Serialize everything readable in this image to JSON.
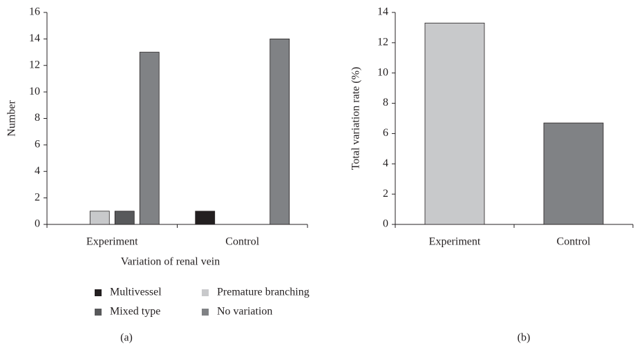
{
  "chart_data": [
    {
      "type": "bar",
      "caption": "(a)",
      "y_label": "Number",
      "x_label": "Variation of renal vein",
      "categories": [
        "Experiment",
        "Control"
      ],
      "series": [
        {
          "name": "Multivessel",
          "color": "#231f20",
          "values": [
            0,
            1
          ]
        },
        {
          "name": "Premature branching",
          "color": "#c8c9cb",
          "values": [
            1,
            0
          ]
        },
        {
          "name": "Mixed type",
          "color": "#58595b",
          "values": [
            1,
            0
          ]
        },
        {
          "name": "No variation",
          "color": "#808285",
          "values": [
            13,
            14
          ]
        }
      ],
      "ylim": [
        0,
        16
      ],
      "yticks": [
        0,
        2,
        4,
        6,
        8,
        10,
        12,
        14,
        16
      ]
    },
    {
      "type": "bar",
      "caption": "(b)",
      "y_label": "Total variation rate (%)",
      "categories": [
        "Experiment",
        "Control"
      ],
      "values": [
        13.3,
        6.7
      ],
      "colors": [
        "#c8c9cb",
        "#808285"
      ],
      "ylim": [
        0,
        14
      ],
      "yticks": [
        0,
        2,
        4,
        6,
        8,
        10,
        12,
        14
      ]
    }
  ]
}
